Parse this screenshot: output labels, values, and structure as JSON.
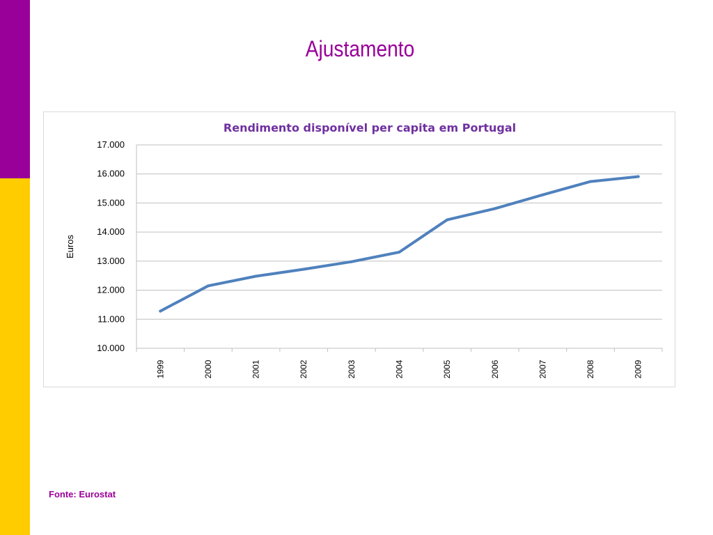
{
  "slide": {
    "title": "Ajustamento",
    "source": "Fonte: Eurostat"
  },
  "colors": {
    "purple": "#990099",
    "yellow": "#FFCC00",
    "chart_title": "#7030A0",
    "line": "#4F81BD",
    "grid": "#BFBFBF"
  },
  "chart_data": {
    "type": "line",
    "title": "Rendimento disponível per capita em Portugal",
    "xlabel": "",
    "ylabel": "Euros",
    "x": [
      "1999",
      "2000",
      "2001",
      "2002",
      "2003",
      "2004",
      "2005",
      "2006",
      "2007",
      "2008",
      "2009"
    ],
    "series": [
      {
        "values": [
          11280,
          12150,
          12480,
          12720,
          12980,
          13310,
          14420,
          14810,
          15280,
          15740,
          15910
        ]
      }
    ],
    "ylim": [
      10000,
      17000
    ],
    "yticks": [
      10000,
      11000,
      12000,
      13000,
      14000,
      15000,
      16000,
      17000
    ],
    "ytick_labels": [
      "10.000",
      "11.000",
      "12.000",
      "13.000",
      "14.000",
      "15.000",
      "16.000",
      "17.000"
    ],
    "grid": true,
    "legend": "none"
  }
}
